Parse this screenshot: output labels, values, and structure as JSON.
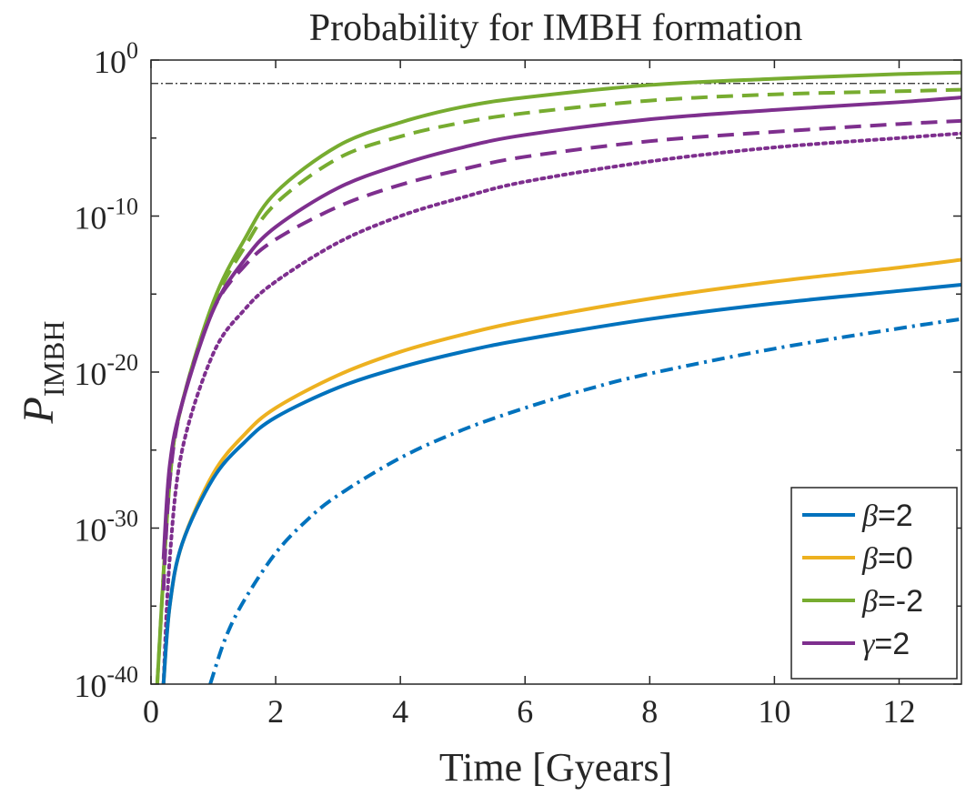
{
  "chart_data": {
    "type": "line",
    "title": "Probability for IMBH formation",
    "xlabel": "Time [Gyears]",
    "ylabel_main": "P",
    "ylabel_sub": "IMBH",
    "xlim": [
      0,
      13
    ],
    "ylim_log10": [
      -40,
      0
    ],
    "yscale": "log",
    "x_ticks": [
      {
        "value": 0,
        "label": "0"
      },
      {
        "value": 2,
        "label": "2"
      },
      {
        "value": 4,
        "label": "4"
      },
      {
        "value": 6,
        "label": "6"
      },
      {
        "value": 8,
        "label": "8"
      },
      {
        "value": 10,
        "label": "10"
      },
      {
        "value": 12,
        "label": "12"
      }
    ],
    "y_ticks": [
      {
        "exp": 0,
        "base": "10",
        "sup": "0"
      },
      {
        "exp": -10,
        "base": "10",
        "sup": "-10"
      },
      {
        "exp": -20,
        "base": "10",
        "sup": "-20"
      },
      {
        "exp": -30,
        "base": "10",
        "sup": "-30"
      },
      {
        "exp": -40,
        "base": "10",
        "sup": "-40"
      }
    ],
    "reference_line": {
      "log10_y": -1.5,
      "style": "dashdot",
      "color": "#262626"
    },
    "series": [
      {
        "name": "β=-2 solid",
        "color": "#77AC30",
        "style": "solid",
        "x": [
          0.1,
          0.3,
          0.5,
          1,
          1.5,
          2,
          3,
          4,
          5,
          6,
          8,
          10,
          12,
          13
        ],
        "log10_y": [
          -40,
          -27,
          -22,
          -15.5,
          -11.5,
          -8.5,
          -5.5,
          -4,
          -3,
          -2.4,
          -1.6,
          -1.2,
          -0.9,
          -0.8
        ]
      },
      {
        "name": "β=-2 dashed",
        "color": "#77AC30",
        "style": "dashed",
        "x": [
          0.1,
          0.3,
          0.5,
          1,
          1.5,
          2,
          3,
          4,
          5,
          6,
          8,
          10,
          12,
          13
        ],
        "log10_y": [
          -40,
          -27,
          -22,
          -15.7,
          -12,
          -9.2,
          -6.3,
          -4.9,
          -4,
          -3.4,
          -2.6,
          -2.2,
          -2,
          -1.9
        ]
      },
      {
        "name": "γ=2 solid",
        "color": "#7E2F8E",
        "style": "solid",
        "x": [
          0.2,
          0.3,
          0.5,
          1,
          1.5,
          2,
          3,
          4,
          5,
          6,
          8,
          10,
          12,
          13
        ],
        "log10_y": [
          -32,
          -26,
          -22,
          -16,
          -12.8,
          -10.7,
          -8.2,
          -6.7,
          -5.6,
          -4.8,
          -3.8,
          -3.2,
          -2.7,
          -2.4
        ]
      },
      {
        "name": "γ=2 dashed",
        "color": "#7E2F8E",
        "style": "dashed",
        "x": [
          0.2,
          0.3,
          0.5,
          1,
          1.5,
          2,
          3,
          4,
          5,
          6,
          8,
          10,
          12,
          13
        ],
        "log10_y": [
          -34,
          -27,
          -22,
          -16,
          -13.2,
          -11.5,
          -9.4,
          -8,
          -7,
          -6.2,
          -5.2,
          -4.6,
          -4.1,
          -3.9
        ]
      },
      {
        "name": "γ=2 dotted",
        "color": "#7E2F8E",
        "style": "dotted",
        "x": [
          0.2,
          0.3,
          0.5,
          1,
          1.5,
          2,
          3,
          4,
          5,
          6,
          8,
          10,
          12,
          13
        ],
        "log10_y": [
          -40,
          -32,
          -25,
          -18.8,
          -16,
          -14.2,
          -11.7,
          -10,
          -8.8,
          -7.8,
          -6.5,
          -5.6,
          -5,
          -4.7
        ]
      },
      {
        "name": "β=0 solid",
        "color": "#EDB120",
        "style": "solid",
        "x": [
          0.2,
          0.3,
          0.5,
          1,
          1.5,
          2,
          3,
          4,
          5,
          6,
          8,
          10,
          12,
          13
        ],
        "log10_y": [
          -40,
          -35,
          -31,
          -26.5,
          -24,
          -22.3,
          -20.2,
          -18.7,
          -17.6,
          -16.7,
          -15.3,
          -14.2,
          -13.3,
          -12.8
        ]
      },
      {
        "name": "β=2 solid",
        "color": "#0072BD",
        "style": "solid",
        "x": [
          0.2,
          0.3,
          0.5,
          1,
          1.5,
          2,
          3,
          4,
          5,
          6,
          8,
          10,
          12,
          13
        ],
        "log10_y": [
          -40,
          -35,
          -31,
          -26.8,
          -24.5,
          -22.9,
          -21,
          -19.7,
          -18.7,
          -17.9,
          -16.6,
          -15.6,
          -14.8,
          -14.4
        ]
      },
      {
        "name": "β=2 dashdot",
        "color": "#0072BD",
        "style": "dashdot",
        "x": [
          0.95,
          1.2,
          1.5,
          2,
          2.5,
          3,
          4,
          5,
          6,
          7,
          8,
          10,
          12,
          13
        ],
        "log10_y": [
          -40,
          -37,
          -34.6,
          -31.6,
          -29.5,
          -27.9,
          -25.5,
          -23.7,
          -22.3,
          -21.1,
          -20.1,
          -18.5,
          -17.2,
          -16.6
        ]
      }
    ],
    "legend": {
      "location": "bottom-right",
      "entries": [
        {
          "symbol": "β",
          "label": "=2",
          "color": "#0072BD"
        },
        {
          "symbol": "β",
          "label": "=0",
          "color": "#EDB120"
        },
        {
          "symbol": "β",
          "label": "=-2",
          "color": "#77AC30"
        },
        {
          "symbol": "γ",
          "label": "=2",
          "color": "#7E2F8E"
        }
      ]
    }
  }
}
